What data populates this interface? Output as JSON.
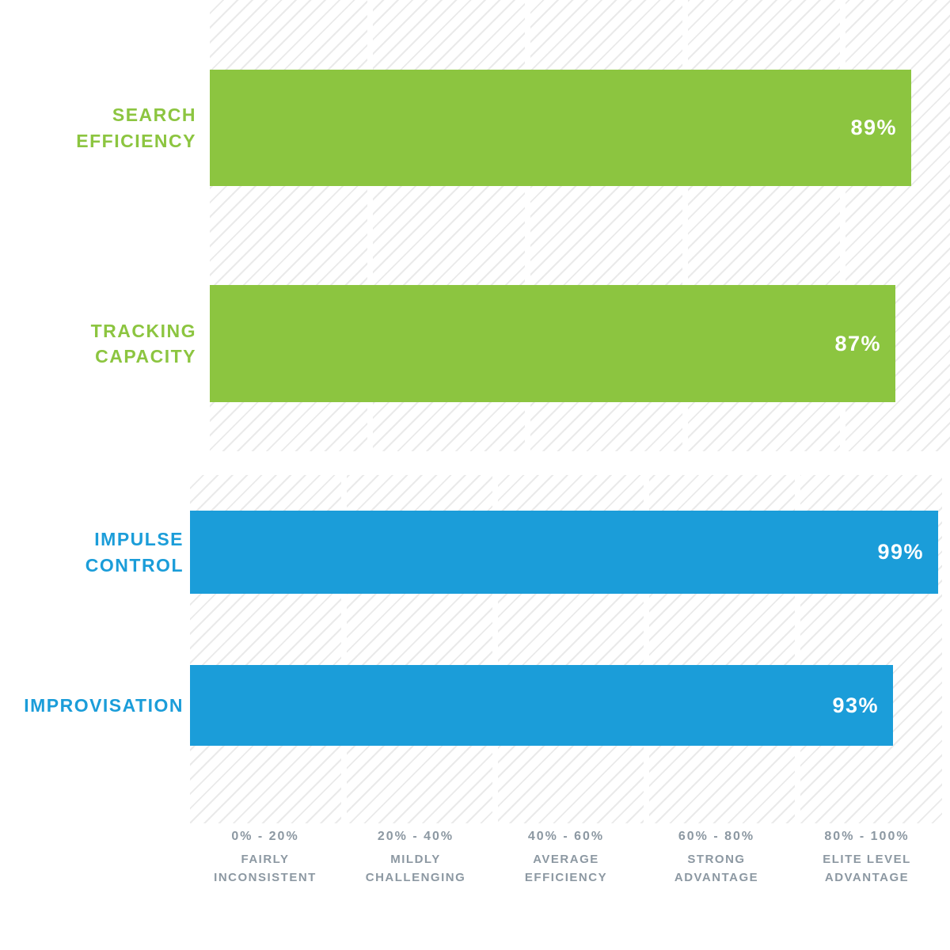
{
  "chart_data": {
    "type": "bar",
    "orientation": "horizontal",
    "title": "",
    "categories": [
      "SEARCH EFFICIENCY",
      "TRACKING CAPACITY",
      "IMPULSE CONTROL",
      "IMPROVISATION"
    ],
    "values": [
      89,
      87,
      99,
      93
    ],
    "value_labels": [
      "89%",
      "87%",
      "99%",
      "93%"
    ],
    "bar_colors": [
      "#8cc540",
      "#8cc540",
      "#1b9dd9",
      "#1b9dd9"
    ],
    "xlim": [
      0,
      100
    ],
    "x_ticks": [
      {
        "range": "0% - 20%",
        "label": "FAIRLY INCONSISTENT"
      },
      {
        "range": "20% - 40%",
        "label": "MILDLY CHALLENGING"
      },
      {
        "range": "40% - 60%",
        "label": "AVERAGE EFFICIENCY"
      },
      {
        "range": "60% - 80%",
        "label": "STRONG ADVANTAGE"
      },
      {
        "range": "80% - 100%",
        "label": "ELITE LEVEL ADVANTAGE"
      }
    ],
    "grid": "vertical white gridlines every 20% over diagonal-hatch background",
    "legend": "none"
  },
  "row_labels": [
    {
      "line1": "SEARCH",
      "line2": "EFFICIENCY"
    },
    {
      "line1": "TRACKING",
      "line2": "CAPACITY"
    },
    {
      "line1": "IMPULSE",
      "line2": "CONTROL"
    },
    {
      "line1": "IMPROVISATION",
      "line2": ""
    }
  ],
  "axis": {
    "ticks": [
      {
        "range": "0% - 20%",
        "desc1": "FAIRLY",
        "desc2": "INCONSISTENT"
      },
      {
        "range": "20% - 40%",
        "desc1": "MILDLY",
        "desc2": "CHALLENGING"
      },
      {
        "range": "40% - 60%",
        "desc1": "AVERAGE",
        "desc2": "EFFICIENCY"
      },
      {
        "range": "60% - 80%",
        "desc1": "STRONG",
        "desc2": "ADVANTAGE"
      },
      {
        "range": "80% - 100%",
        "desc1": "ELITE LEVEL",
        "desc2": "ADVANTAGE"
      }
    ]
  },
  "colors": {
    "green": "#8cc540",
    "blue": "#1b9dd9",
    "axis_text": "#8c98a2",
    "hatch_line": "#eaeaea",
    "value_text": "#ffffff",
    "background": "#ffffff"
  }
}
